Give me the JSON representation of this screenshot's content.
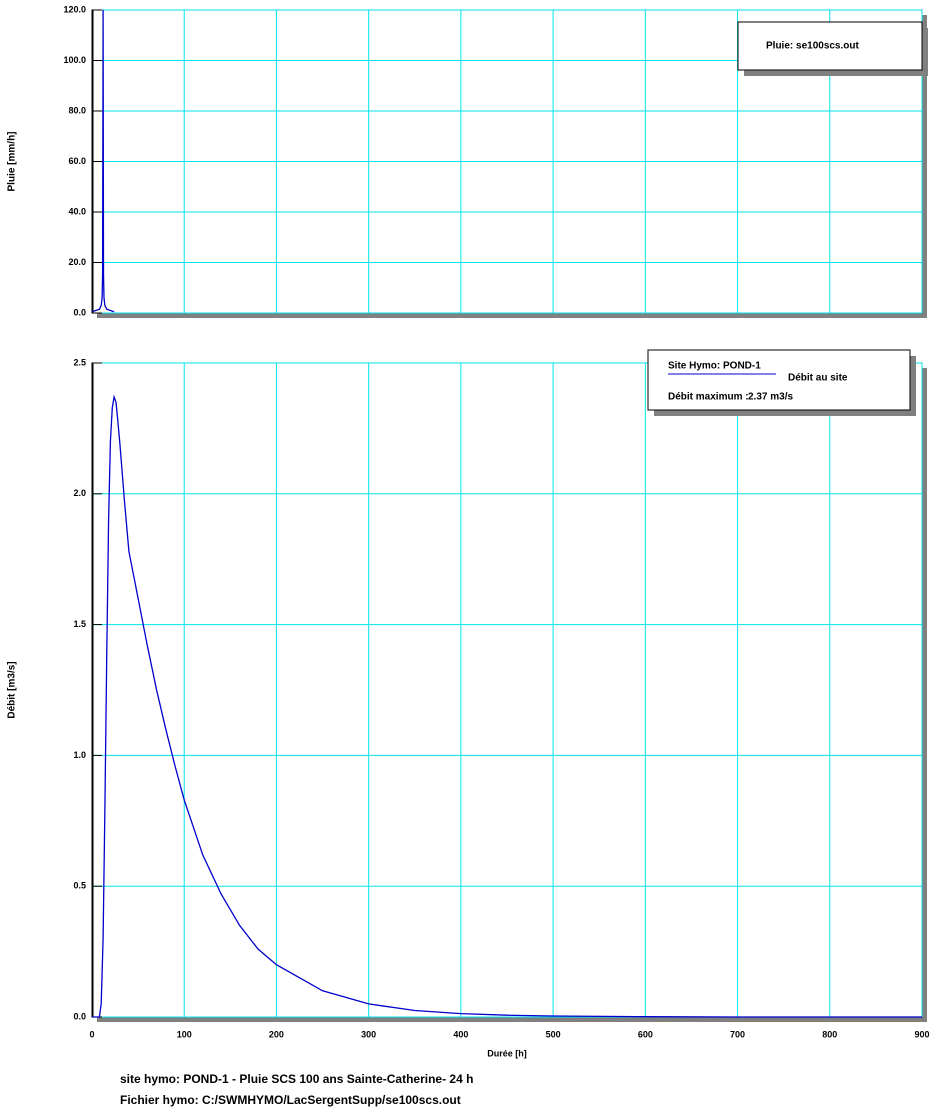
{
  "chart_data": [
    {
      "type": "line",
      "ylabel": "Pluie [mm/h]",
      "legend": "upper right",
      "xlim": [
        0,
        900
      ],
      "xticks": [
        0,
        100,
        200,
        300,
        400,
        500,
        600,
        700,
        800,
        900
      ],
      "ylim": [
        0,
        120
      ],
      "yticks": [
        {
          "value": 0,
          "label": "0.0"
        },
        {
          "value": 20,
          "label": "20.0"
        },
        {
          "value": 40,
          "label": "40.0"
        },
        {
          "value": 60,
          "label": "60.0"
        },
        {
          "value": 80,
          "label": "80.0"
        },
        {
          "value": 100,
          "label": "100.0"
        },
        {
          "value": 120,
          "label": "120.0"
        }
      ],
      "grid": true,
      "grid_color": "#00e5ee",
      "series": [
        {
          "name": "Pluie: se100scs.out",
          "color": "#0000cc",
          "x": [
            0,
            4,
            8,
            10,
            11,
            11.5,
            12,
            12.5,
            13,
            14,
            16,
            20,
            24
          ],
          "values": [
            0.5,
            1,
            1.5,
            3,
            6,
            15,
            120,
            15,
            6,
            3,
            1.5,
            1,
            0.5
          ]
        }
      ]
    },
    {
      "type": "line",
      "ylabel": "Débit [m3/s]",
      "xlabel": "Durée [h]",
      "legend": "upper right",
      "legend_title": "Site Hymo: POND-1",
      "annotation": [
        "Débit maximum :",
        "2.37 m3/s"
      ],
      "xlim": [
        0,
        900
      ],
      "xticks": [
        0,
        100,
        200,
        300,
        400,
        500,
        600,
        700,
        800,
        900
      ],
      "ylim": [
        0,
        2.5
      ],
      "yticks": [
        {
          "value": 0,
          "label": "0.0"
        },
        {
          "value": 0.5,
          "label": "0.5"
        },
        {
          "value": 1,
          "label": "1.0"
        },
        {
          "value": 1.5,
          "label": "1.5"
        },
        {
          "value": 2,
          "label": "2.0"
        },
        {
          "value": 2.5,
          "label": "2.5"
        }
      ],
      "grid": true,
      "grid_color": "#00e5ee",
      "series": [
        {
          "name": "Débit au site",
          "color": "#0000cc",
          "x": [
            0,
            8,
            10,
            12,
            14,
            16,
            18,
            20,
            22,
            24,
            26,
            28,
            30,
            35,
            40,
            50,
            60,
            70,
            80,
            90,
            100,
            120,
            140,
            160,
            180,
            200,
            250,
            300,
            350,
            400,
            450,
            500,
            600,
            700,
            800,
            900
          ],
          "values": [
            0,
            0,
            0.05,
            0.3,
            0.8,
            1.4,
            1.9,
            2.2,
            2.33,
            2.37,
            2.35,
            2.28,
            2.2,
            1.98,
            1.78,
            1.6,
            1.42,
            1.25,
            1.1,
            0.96,
            0.83,
            0.62,
            0.47,
            0.35,
            0.26,
            0.2,
            0.1,
            0.05,
            0.025,
            0.013,
            0.007,
            0.004,
            0.001,
            0,
            0,
            0
          ]
        }
      ]
    }
  ],
  "footer": [
    "site hymo: POND-1 -  Pluie SCS 100 ans Sainte-Catherine- 24 h",
    "Fichier hymo: C:/SWMHYMO/LacSergentSupp/se100scs.out"
  ]
}
